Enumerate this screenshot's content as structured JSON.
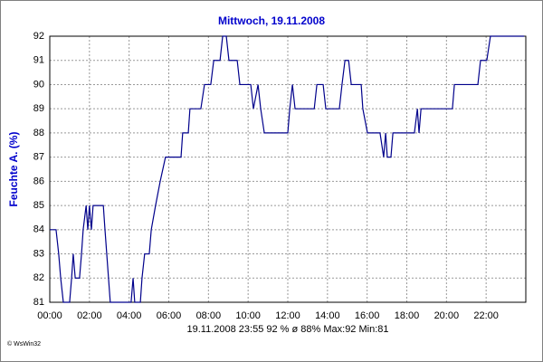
{
  "chart_data": {
    "type": "line",
    "title": "Mittwoch, 19.11.2008",
    "y_label": "Feuchte A. (%)",
    "footer": "19.11.2008   23:55   92 %   ø 88%   Max:92  Min:81",
    "credit": "© WsWin32",
    "xlim": [
      0,
      1440
    ],
    "ylim": [
      81,
      92
    ],
    "grid": true,
    "xticks": [
      {
        "value": 0,
        "label": "00:00"
      },
      {
        "value": 120,
        "label": "02:00"
      },
      {
        "value": 240,
        "label": "04:00"
      },
      {
        "value": 360,
        "label": "06:00"
      },
      {
        "value": 480,
        "label": "08:00"
      },
      {
        "value": 600,
        "label": "10:00"
      },
      {
        "value": 720,
        "label": "12:00"
      },
      {
        "value": 840,
        "label": "14:00"
      },
      {
        "value": 960,
        "label": "16:00"
      },
      {
        "value": 1080,
        "label": "18:00"
      },
      {
        "value": 1200,
        "label": "20:00"
      },
      {
        "value": 1320,
        "label": "22:00"
      }
    ],
    "yticks": [
      81,
      82,
      83,
      84,
      85,
      86,
      87,
      88,
      89,
      90,
      91,
      92
    ],
    "series": [
      {
        "color": "#00008b",
        "x": [
          0,
          19,
          27,
          33,
          41,
          60,
          66,
          71,
          77,
          90,
          96,
          101,
          110,
          115,
          120,
          126,
          131,
          137,
          162,
          167,
          183,
          246,
          252,
          257,
          274,
          279,
          287,
          301,
          307,
          320,
          334,
          350,
          397,
          402,
          419,
          424,
          457,
          468,
          487,
          496,
          515,
          523,
          534,
          542,
          567,
          575,
          608,
          616,
          630,
          638,
          649,
          720,
          726,
          734,
          742,
          800,
          808,
          827,
          835,
          876,
          884,
          893,
          904,
          912,
          942,
          947,
          961,
          999,
          1010,
          1016,
          1021,
          1032,
          1038,
          1103,
          1112,
          1117,
          1123,
          1218,
          1224,
          1295,
          1303,
          1322,
          1333,
          1435
        ],
        "values": [
          84,
          84,
          83,
          82,
          81,
          81,
          82,
          83,
          82,
          82,
          83,
          84,
          85,
          84,
          85,
          84,
          85,
          85,
          85,
          84,
          81,
          81,
          82,
          81,
          81,
          82,
          83,
          83,
          84,
          85,
          86,
          87,
          87,
          88,
          88,
          89,
          89,
          90,
          90,
          91,
          91,
          92,
          92,
          91,
          91,
          90,
          90,
          89,
          90,
          89,
          88,
          88,
          89,
          90,
          89,
          89,
          90,
          90,
          89,
          89,
          90,
          91,
          91,
          90,
          90,
          89,
          88,
          88,
          87,
          88,
          87,
          87,
          88,
          88,
          89,
          88,
          89,
          89,
          90,
          90,
          91,
          91,
          92,
          92
        ]
      }
    ]
  }
}
